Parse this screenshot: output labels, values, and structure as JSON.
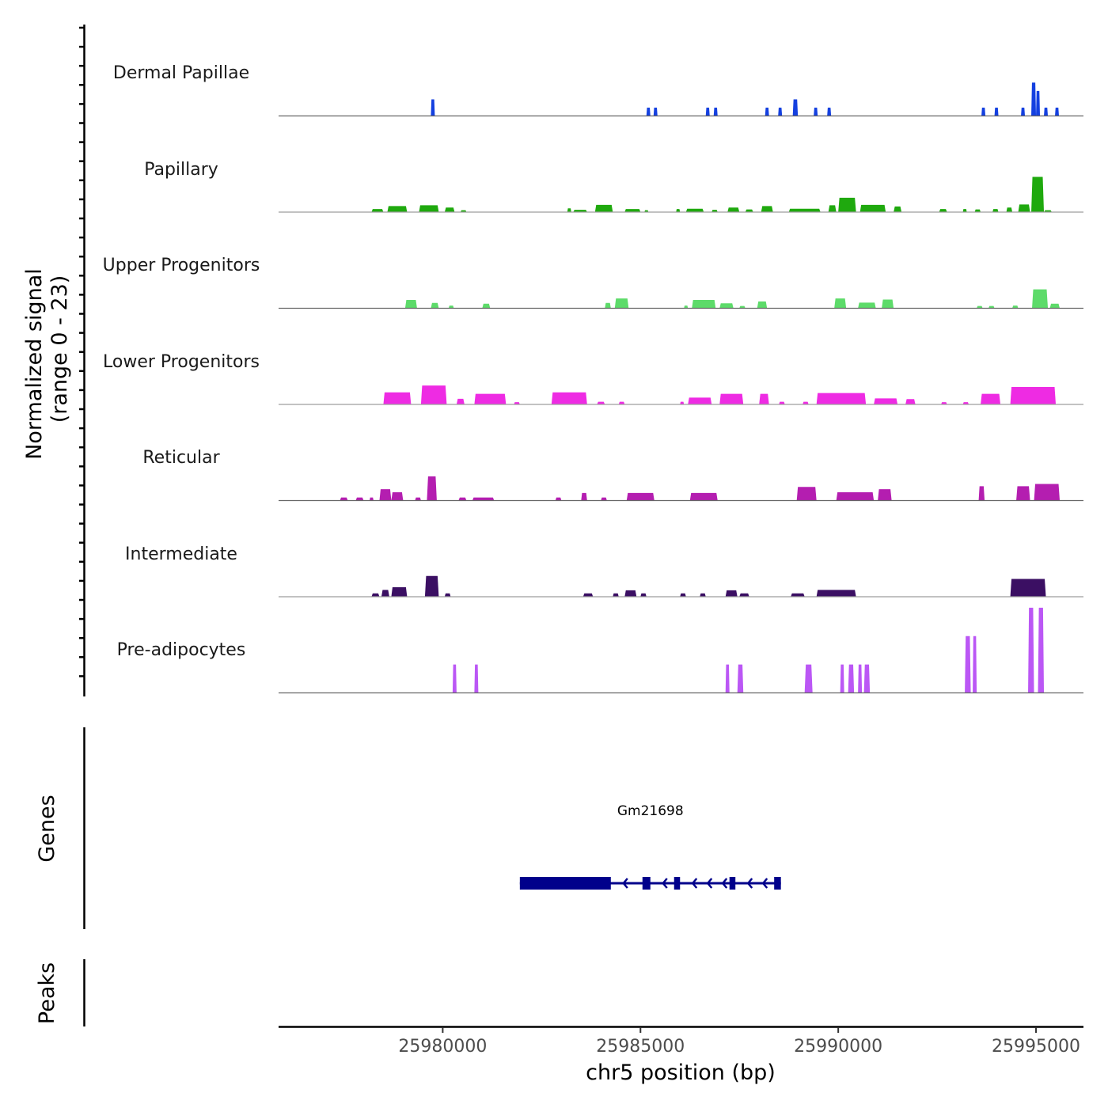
{
  "chart_data": {
    "type": "area",
    "title": "",
    "xlabel": "chr5 position (bp)",
    "ylabel": "Normalized signal\n(range 0 - 23)",
    "ylabel_lines": [
      "Normalized signal",
      "(range 0 - 23)"
    ],
    "ylim": [
      0,
      23
    ],
    "xlim": [
      25975850,
      25996200
    ],
    "x_ticks": [
      25980000,
      25985000,
      25990000,
      25995000
    ],
    "x_tick_labels": [
      "25980000",
      "25985000",
      "25990000",
      "25995000"
    ],
    "grid": false,
    "tracks": [
      {
        "name": "Dermal Papillae",
        "color": "#1440e0",
        "peaks": [
          [
            25979700,
            25979800,
            4.4
          ],
          [
            25985150,
            25985250,
            2.2
          ],
          [
            25985330,
            25985430,
            2.2
          ],
          [
            25986650,
            25986750,
            2.2
          ],
          [
            25986850,
            25986950,
            2.2
          ],
          [
            25988150,
            25988250,
            2.2
          ],
          [
            25988480,
            25988580,
            2.2
          ],
          [
            25988850,
            25988980,
            4.4
          ],
          [
            25989380,
            25989480,
            2.2
          ],
          [
            25989720,
            25989820,
            2.2
          ],
          [
            25993620,
            25993720,
            2.2
          ],
          [
            25993950,
            25994050,
            2.2
          ],
          [
            25994620,
            25994720,
            2.2
          ],
          [
            25994880,
            25995000,
            8.8
          ],
          [
            25995000,
            25995100,
            6.6
          ],
          [
            25995200,
            25995300,
            2.2
          ],
          [
            25995480,
            25995580,
            2.2
          ]
        ]
      },
      {
        "name": "Papillary",
        "color": "#1fa90e",
        "peaks": [
          [
            25978200,
            25978500,
            0.8
          ],
          [
            25978600,
            25979100,
            1.6
          ],
          [
            25979400,
            25979900,
            1.8
          ],
          [
            25980050,
            25980300,
            1.2
          ],
          [
            25980450,
            25980600,
            0.5
          ],
          [
            25983150,
            25983250,
            1.0
          ],
          [
            25983300,
            25983650,
            0.6
          ],
          [
            25983850,
            25984300,
            1.9
          ],
          [
            25984600,
            25985000,
            0.8
          ],
          [
            25985100,
            25985200,
            0.5
          ],
          [
            25985900,
            25986000,
            0.8
          ],
          [
            25986150,
            25986600,
            0.9
          ],
          [
            25986800,
            25986950,
            0.6
          ],
          [
            25987200,
            25987500,
            1.2
          ],
          [
            25987650,
            25987850,
            0.7
          ],
          [
            25988050,
            25988350,
            1.6
          ],
          [
            25988750,
            25989550,
            0.9
          ],
          [
            25989750,
            25989950,
            1.8
          ],
          [
            25990000,
            25990450,
            3.8
          ],
          [
            25990550,
            25991200,
            1.9
          ],
          [
            25991400,
            25991600,
            1.5
          ],
          [
            25992550,
            25992750,
            0.8
          ],
          [
            25993150,
            25993250,
            0.8
          ],
          [
            25993450,
            25993600,
            0.7
          ],
          [
            25993900,
            25994050,
            0.8
          ],
          [
            25994250,
            25994400,
            1.2
          ],
          [
            25994550,
            25994850,
            2.0
          ],
          [
            25994880,
            25995200,
            9.3
          ],
          [
            25995200,
            25995400,
            0.5
          ]
        ]
      },
      {
        "name": "Upper Progenitors",
        "color": "#5ddb6a",
        "peaks": [
          [
            25979050,
            25979350,
            2.2
          ],
          [
            25979700,
            25979900,
            1.4
          ],
          [
            25980150,
            25980280,
            0.7
          ],
          [
            25981000,
            25981200,
            1.2
          ],
          [
            25984100,
            25984250,
            1.4
          ],
          [
            25984350,
            25984700,
            2.6
          ],
          [
            25986100,
            25986200,
            0.7
          ],
          [
            25986300,
            25986900,
            2.2
          ],
          [
            25987000,
            25987350,
            1.3
          ],
          [
            25987500,
            25987650,
            0.6
          ],
          [
            25987950,
            25988200,
            1.8
          ],
          [
            25989900,
            25990200,
            2.6
          ],
          [
            25990500,
            25990950,
            1.5
          ],
          [
            25991100,
            25991400,
            2.3
          ],
          [
            25993500,
            25993650,
            0.6
          ],
          [
            25993800,
            25993950,
            0.6
          ],
          [
            25994400,
            25994550,
            0.7
          ],
          [
            25994900,
            25995300,
            5.0
          ],
          [
            25995350,
            25995600,
            1.2
          ]
        ]
      },
      {
        "name": "Lower Progenitors",
        "color": "#ee2be3",
        "peaks": [
          [
            25978500,
            25979200,
            3.2
          ],
          [
            25979450,
            25980100,
            5.0
          ],
          [
            25980350,
            25980550,
            1.5
          ],
          [
            25980800,
            25981600,
            2.8
          ],
          [
            25981800,
            25981950,
            0.6
          ],
          [
            25982750,
            25983650,
            3.2
          ],
          [
            25983900,
            25984100,
            0.7
          ],
          [
            25984450,
            25984600,
            0.7
          ],
          [
            25986000,
            25986100,
            0.7
          ],
          [
            25986200,
            25986800,
            1.8
          ],
          [
            25987000,
            25987600,
            2.8
          ],
          [
            25988000,
            25988250,
            2.8
          ],
          [
            25988500,
            25988650,
            0.7
          ],
          [
            25989100,
            25989250,
            0.7
          ],
          [
            25989450,
            25990700,
            3.0
          ],
          [
            25990900,
            25991500,
            1.6
          ],
          [
            25991700,
            25991950,
            1.4
          ],
          [
            25992600,
            25992750,
            0.6
          ],
          [
            25993150,
            25993300,
            0.6
          ],
          [
            25993600,
            25994100,
            2.8
          ],
          [
            25994350,
            25995500,
            4.6
          ]
        ]
      },
      {
        "name": "Reticular",
        "color": "#b41eb0",
        "peaks": [
          [
            25977400,
            25977600,
            0.8
          ],
          [
            25977800,
            25978000,
            0.8
          ],
          [
            25978150,
            25978250,
            0.8
          ],
          [
            25978400,
            25978700,
            3.0
          ],
          [
            25978700,
            25979000,
            2.2
          ],
          [
            25979300,
            25979450,
            0.8
          ],
          [
            25979600,
            25979850,
            6.4
          ],
          [
            25980400,
            25980600,
            0.8
          ],
          [
            25980750,
            25981300,
            0.8
          ],
          [
            25982850,
            25983000,
            0.8
          ],
          [
            25983500,
            25983650,
            2.0
          ],
          [
            25984000,
            25984150,
            0.8
          ],
          [
            25984650,
            25985350,
            2.0
          ],
          [
            25986250,
            25986950,
            2.0
          ],
          [
            25988950,
            25989450,
            3.6
          ],
          [
            25989950,
            25990900,
            2.2
          ],
          [
            25991000,
            25991350,
            3.0
          ],
          [
            25993550,
            25993700,
            3.8
          ],
          [
            25994500,
            25994850,
            3.8
          ],
          [
            25994950,
            25995600,
            4.4
          ]
        ]
      },
      {
        "name": "Intermediate",
        "color": "#3b0f63",
        "peaks": [
          [
            25978200,
            25978400,
            0.9
          ],
          [
            25978450,
            25978650,
            1.8
          ],
          [
            25978700,
            25979100,
            2.5
          ],
          [
            25979550,
            25979900,
            5.5
          ],
          [
            25980050,
            25980200,
            0.9
          ],
          [
            25983550,
            25983800,
            0.9
          ],
          [
            25984300,
            25984450,
            0.9
          ],
          [
            25984600,
            25984900,
            1.7
          ],
          [
            25985000,
            25985150,
            0.9
          ],
          [
            25986000,
            25986150,
            0.9
          ],
          [
            25986500,
            25986650,
            0.9
          ],
          [
            25987150,
            25987450,
            1.7
          ],
          [
            25987500,
            25987750,
            0.9
          ],
          [
            25988800,
            25989150,
            0.9
          ],
          [
            25989450,
            25990450,
            1.8
          ],
          [
            25994350,
            25995250,
            4.7
          ]
        ]
      },
      {
        "name": "Pre-adipocytes",
        "color": "#bb57f5",
        "peaks": [
          [
            25980250,
            25980350,
            7.5
          ],
          [
            25980800,
            25980900,
            7.5
          ],
          [
            25987150,
            25987250,
            7.5
          ],
          [
            25987450,
            25987600,
            7.5
          ],
          [
            25989150,
            25989350,
            7.5
          ],
          [
            25990050,
            25990150,
            7.5
          ],
          [
            25990250,
            25990400,
            7.5
          ],
          [
            25990500,
            25990600,
            7.5
          ],
          [
            25990650,
            25990800,
            7.5
          ],
          [
            25993200,
            25993350,
            15.0
          ],
          [
            25993400,
            25993500,
            15.0
          ],
          [
            25994800,
            25994950,
            22.5
          ],
          [
            25995050,
            25995200,
            22.5
          ]
        ]
      }
    ],
    "genes_track": {
      "label": "Genes",
      "genes": [
        {
          "name": "Gm21698",
          "strand": "-",
          "start": 25981950,
          "end": 25988550,
          "color": "#00008b",
          "exons": [
            [
              25981950,
              25984250
            ],
            [
              25985050,
              25985250
            ],
            [
              25985850,
              25986000
            ],
            [
              25987250,
              25987400
            ],
            [
              25988380,
              25988550
            ]
          ]
        }
      ]
    },
    "peaks_track": {
      "label": "Peaks",
      "peaks": []
    }
  }
}
